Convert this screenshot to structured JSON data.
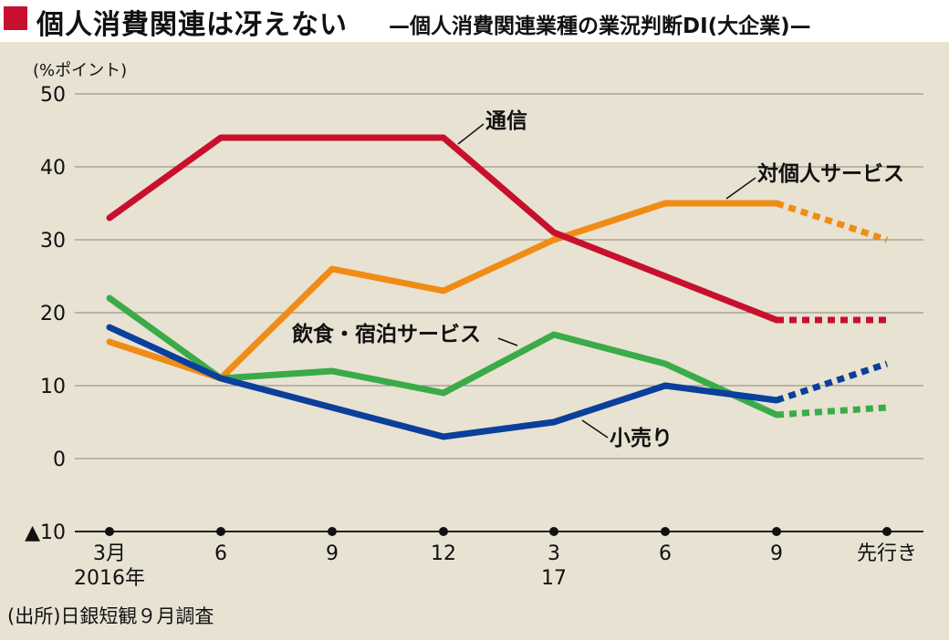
{
  "header": {
    "title": "個人消費関連は冴えない",
    "subtitle": "—個人消費関連業種の業況判断DI(大企業)—"
  },
  "source": "(出所)日銀短観９月調査",
  "colors": {
    "accent": "#c8102e",
    "background": "#e8e2d2",
    "communication": "#c8102e",
    "personal_service": "#f08c16",
    "food_lodging": "#3aab48",
    "retail": "#0a3f9b"
  },
  "chart_data": {
    "type": "line",
    "title": "個人消費関連業種の業況判断DI(大企業)",
    "ylabel": "(%ポイント)",
    "ylim": [
      -10,
      50
    ],
    "y_ticks": [
      -10,
      0,
      10,
      20,
      30,
      40,
      50
    ],
    "y_tick_labels": [
      "▲10",
      "0",
      "10",
      "20",
      "30",
      "40",
      "50"
    ],
    "categories": [
      "2016年3月",
      "6",
      "9",
      "12",
      "17年3",
      "6",
      "9",
      "先行き"
    ],
    "x_tick_labels": [
      {
        "line1": "3月",
        "line2": "2016年"
      },
      {
        "line1": "6",
        "line2": ""
      },
      {
        "line1": "9",
        "line2": ""
      },
      {
        "line1": "12",
        "line2": ""
      },
      {
        "line1": "3",
        "line2": "17"
      },
      {
        "line1": "6",
        "line2": ""
      },
      {
        "line1": "9",
        "line2": ""
      },
      {
        "line1": "先行き",
        "line2": ""
      }
    ],
    "grid": true,
    "forecast_style": "dotted segment from last actual value to 先行き",
    "series": [
      {
        "name": "通信",
        "color": "#c8102e",
        "values": [
          33,
          44,
          44,
          44,
          31,
          25,
          19,
          19
        ]
      },
      {
        "name": "対個人サービス",
        "color": "#f08c16",
        "values": [
          16,
          11,
          26,
          23,
          30,
          35,
          35,
          30
        ]
      },
      {
        "name": "飲食・宿泊サービス",
        "color": "#3aab48",
        "values": [
          22,
          11,
          12,
          9,
          17,
          13,
          6,
          7
        ]
      },
      {
        "name": "小売り",
        "color": "#0a3f9b",
        "values": [
          18,
          11,
          7,
          3,
          5,
          10,
          8,
          13
        ]
      }
    ]
  }
}
